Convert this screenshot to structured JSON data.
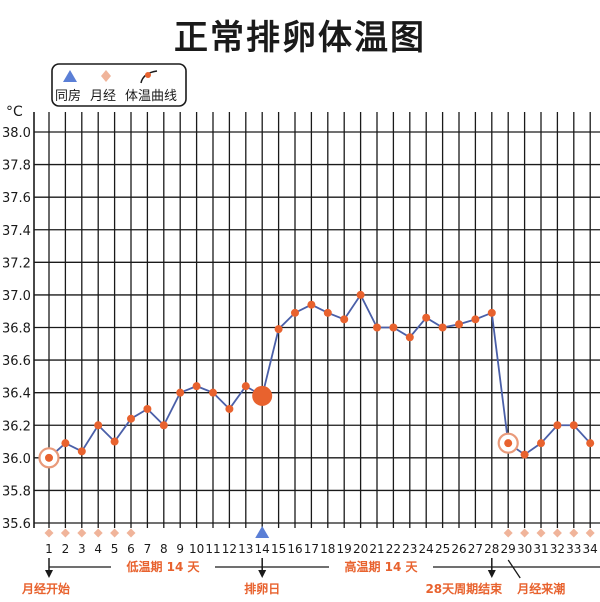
{
  "chart_data": {
    "type": "line",
    "title": "正常排卵体温图",
    "ylabel": "°C",
    "ylim": [
      35.6,
      38.0
    ],
    "yticks": [
      "35.6",
      "35.8",
      "36.0",
      "36.2",
      "36.4",
      "36.6",
      "36.8",
      "37.0",
      "37.2",
      "37.4",
      "37.6",
      "37.8",
      "38.0"
    ],
    "grid": true,
    "legend_position": "top-left",
    "legend": [
      {
        "marker": "triangle",
        "label": "同房",
        "color": "#5b7fd6"
      },
      {
        "marker": "diamond",
        "label": "月经",
        "color": "#f0b49a"
      },
      {
        "marker": "line-dot",
        "label": "体温曲线",
        "color": "#e8622e"
      }
    ],
    "x": [
      "1",
      "2",
      "3",
      "4",
      "5",
      "6",
      "7",
      "8",
      "9",
      "10",
      "11",
      "12",
      "13",
      "14",
      "15",
      "16",
      "17",
      "18",
      "19",
      "20",
      "21",
      "22",
      "23",
      "24",
      "25",
      "26",
      "27",
      "28",
      "29",
      "30",
      "31",
      "32",
      "33",
      "34"
    ],
    "series": [
      {
        "values": [
          36.0,
          36.09,
          36.04,
          36.2,
          36.1,
          36.24,
          36.3,
          36.2,
          36.4,
          36.44,
          36.4,
          36.3,
          36.44,
          36.38,
          36.79,
          36.89,
          36.94,
          36.89,
          36.85,
          37.0,
          36.8,
          36.8,
          36.74,
          36.86,
          36.8,
          36.82,
          36.85,
          36.89,
          36.09,
          36.02,
          36.09,
          36.2,
          36.2,
          36.09
        ],
        "color": "#e8622e",
        "line_color": "#4a5fa8"
      }
    ],
    "menstruation_days": [
      "1",
      "2",
      "3",
      "4",
      "5",
      "6",
      "29",
      "30",
      "31",
      "32",
      "33",
      "34"
    ],
    "intercourse_days": [
      "14"
    ],
    "highlight_points": {
      "ovulation": "14",
      "circled": [
        "1",
        "29"
      ]
    },
    "annotations": {
      "period_start": "月经开始",
      "low_phase": "低温期 14 天",
      "ovulation_day": "排卵日",
      "high_phase": "高温期 14 天",
      "cycle_end": "28天周期结束",
      "next_period": "月经来潮"
    }
  },
  "colors": {
    "grid": "#1a1a1a",
    "line": "#4a5fa8",
    "point": "#e8622e",
    "menstruation": "#f0b49a",
    "intercourse": "#5b7fd6",
    "annotation": "#e8622e"
  }
}
